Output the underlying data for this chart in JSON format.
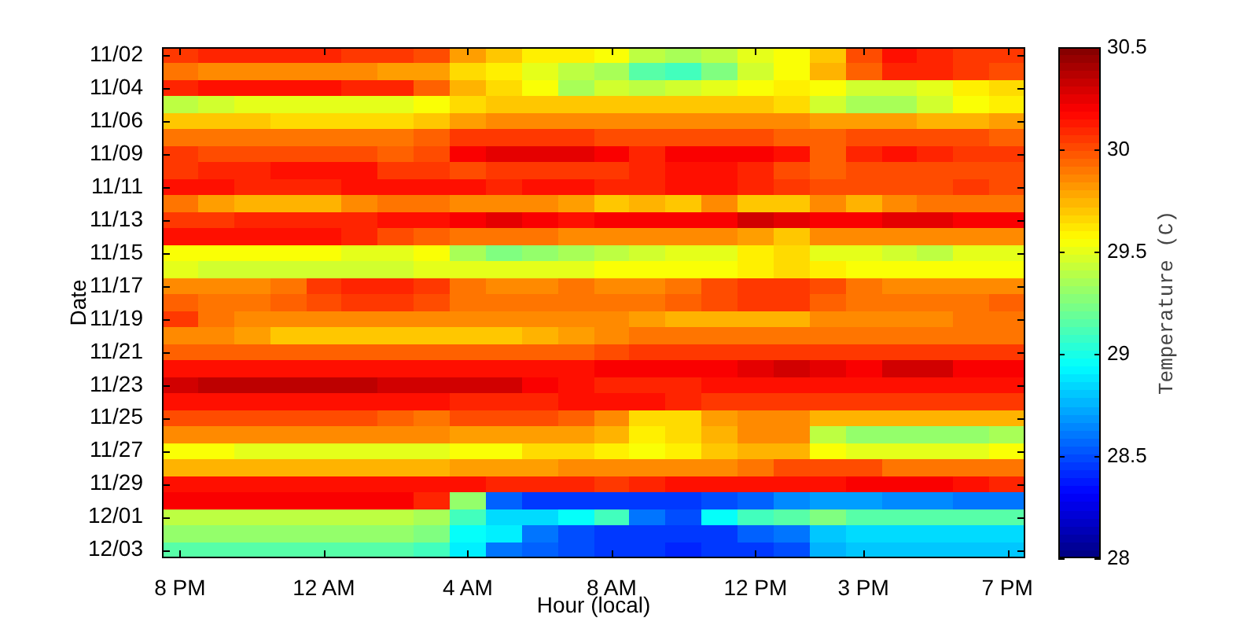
{
  "chart_data": {
    "type": "heatmap",
    "xlabel": "Hour (local)",
    "ylabel": "Date",
    "clabel": "Temperature (C)",
    "categories": [
      "8 PM",
      null,
      null,
      null,
      "12 AM",
      null,
      null,
      null,
      "4 AM",
      null,
      null,
      null,
      "8 AM",
      null,
      null,
      null,
      "12 PM",
      null,
      null,
      "3 PM",
      null,
      null,
      null,
      "7 PM"
    ],
    "y_categories": [
      "11/02",
      null,
      "11/04",
      null,
      "11/06",
      null,
      "11/09",
      null,
      "11/11",
      null,
      "11/13",
      null,
      "11/15",
      null,
      "11/17",
      null,
      "11/19",
      null,
      "11/21",
      null,
      "11/23",
      null,
      "11/25",
      null,
      "11/27",
      null,
      "11/29",
      null,
      "12/01",
      null,
      "12/03"
    ],
    "cells": [
      [
        30.05,
        30.1,
        30.1,
        30.1,
        30.1,
        30.05,
        30.05,
        30.0,
        29.8,
        29.7,
        29.6,
        29.6,
        29.55,
        29.4,
        29.35,
        29.4,
        29.5,
        29.55,
        29.7,
        30.0,
        30.15,
        30.1,
        30.05,
        30.05
      ],
      [
        29.9,
        29.85,
        29.85,
        29.85,
        29.85,
        29.85,
        29.8,
        29.8,
        29.65,
        29.6,
        29.5,
        29.4,
        29.35,
        29.15,
        29.1,
        29.25,
        29.45,
        29.55,
        29.75,
        29.95,
        30.1,
        30.1,
        30.05,
        30.0
      ],
      [
        30.1,
        30.15,
        30.15,
        30.15,
        30.15,
        30.1,
        30.1,
        29.95,
        29.75,
        29.65,
        29.55,
        29.35,
        29.45,
        29.4,
        29.45,
        29.5,
        29.55,
        29.6,
        29.55,
        29.45,
        29.45,
        29.5,
        29.6,
        29.65
      ],
      [
        29.4,
        29.45,
        29.5,
        29.5,
        29.5,
        29.5,
        29.5,
        29.55,
        29.65,
        29.7,
        29.7,
        29.7,
        29.7,
        29.7,
        29.7,
        29.7,
        29.7,
        29.65,
        29.45,
        29.35,
        29.35,
        29.45,
        29.55,
        29.6
      ],
      [
        29.7,
        29.7,
        29.7,
        29.65,
        29.65,
        29.65,
        29.65,
        29.7,
        29.8,
        29.85,
        29.85,
        29.85,
        29.85,
        29.85,
        29.85,
        29.85,
        29.85,
        29.85,
        29.8,
        29.8,
        29.8,
        29.75,
        29.75,
        29.8
      ],
      [
        29.9,
        29.9,
        29.9,
        29.9,
        29.9,
        29.9,
        29.9,
        29.95,
        30.05,
        30.05,
        30.05,
        30.05,
        30.0,
        30.0,
        30.0,
        30.0,
        30.0,
        29.95,
        29.95,
        30.0,
        30.0,
        30.0,
        30.0,
        29.95
      ],
      [
        30.05,
        30.0,
        30.0,
        30.0,
        30.0,
        30.0,
        29.95,
        30.0,
        30.2,
        30.25,
        30.25,
        30.25,
        30.2,
        30.1,
        30.2,
        30.2,
        30.2,
        30.15,
        29.95,
        30.1,
        30.15,
        30.1,
        30.05,
        30.05
      ],
      [
        30.05,
        30.1,
        30.1,
        30.15,
        30.15,
        30.15,
        30.05,
        30.05,
        30.0,
        30.05,
        30.05,
        30.05,
        30.05,
        30.1,
        30.15,
        30.15,
        30.1,
        30.0,
        29.95,
        30.0,
        30.0,
        30.0,
        30.0,
        30.0
      ],
      [
        30.15,
        30.15,
        30.1,
        30.1,
        30.1,
        30.15,
        30.15,
        30.15,
        30.15,
        30.1,
        30.15,
        30.15,
        30.1,
        30.1,
        30.15,
        30.15,
        30.1,
        30.05,
        30.0,
        30.0,
        30.0,
        30.0,
        30.05,
        30.0
      ],
      [
        29.9,
        29.8,
        29.75,
        29.75,
        29.75,
        29.85,
        29.9,
        29.9,
        29.85,
        29.85,
        29.85,
        29.8,
        29.7,
        29.75,
        29.7,
        29.85,
        29.7,
        29.7,
        29.85,
        29.75,
        29.85,
        29.9,
        29.9,
        29.9
      ],
      [
        30.05,
        30.05,
        30.1,
        30.1,
        30.1,
        30.1,
        30.15,
        30.15,
        30.2,
        30.25,
        30.2,
        30.15,
        30.2,
        30.2,
        30.2,
        30.2,
        30.3,
        30.25,
        30.2,
        30.2,
        30.25,
        30.25,
        30.2,
        30.2
      ],
      [
        30.15,
        30.15,
        30.15,
        30.15,
        30.15,
        30.1,
        30.0,
        29.95,
        29.9,
        29.9,
        29.9,
        29.85,
        29.85,
        29.85,
        29.85,
        29.85,
        29.8,
        29.7,
        29.85,
        29.85,
        29.85,
        29.85,
        29.85,
        29.85
      ],
      [
        29.55,
        29.55,
        29.55,
        29.55,
        29.55,
        29.5,
        29.5,
        29.55,
        29.35,
        29.25,
        29.3,
        29.35,
        29.4,
        29.45,
        29.5,
        29.5,
        29.6,
        29.65,
        29.5,
        29.5,
        29.45,
        29.4,
        29.5,
        29.5
      ],
      [
        29.5,
        29.45,
        29.45,
        29.45,
        29.45,
        29.45,
        29.45,
        29.5,
        29.5,
        29.5,
        29.5,
        29.5,
        29.55,
        29.55,
        29.55,
        29.55,
        29.6,
        29.65,
        29.6,
        29.55,
        29.55,
        29.55,
        29.55,
        29.55
      ],
      [
        29.85,
        29.85,
        29.85,
        29.9,
        30.05,
        30.1,
        30.1,
        30.05,
        29.9,
        29.85,
        29.85,
        29.9,
        29.85,
        29.85,
        29.9,
        30.0,
        30.05,
        30.05,
        30.0,
        29.9,
        29.85,
        29.85,
        29.85,
        29.85
      ],
      [
        29.95,
        29.9,
        29.9,
        29.95,
        30.0,
        30.05,
        30.05,
        30.0,
        29.9,
        29.9,
        29.9,
        29.9,
        29.9,
        29.9,
        29.95,
        30.0,
        30.05,
        30.05,
        29.95,
        29.9,
        29.9,
        29.9,
        29.9,
        29.95
      ],
      [
        30.05,
        29.9,
        29.85,
        29.85,
        29.85,
        29.85,
        29.85,
        29.85,
        29.85,
        29.85,
        29.85,
        29.85,
        29.85,
        29.8,
        29.75,
        29.75,
        29.75,
        29.75,
        29.85,
        29.85,
        29.85,
        29.85,
        29.9,
        29.9
      ],
      [
        29.85,
        29.85,
        29.8,
        29.7,
        29.7,
        29.7,
        29.7,
        29.7,
        29.7,
        29.7,
        29.75,
        29.8,
        29.85,
        29.9,
        29.9,
        29.9,
        29.9,
        29.9,
        29.9,
        29.9,
        29.9,
        29.9,
        29.9,
        29.9
      ],
      [
        29.95,
        29.95,
        29.95,
        29.95,
        29.95,
        29.95,
        29.95,
        29.95,
        29.95,
        29.95,
        29.95,
        29.95,
        30.0,
        30.05,
        30.05,
        30.05,
        30.05,
        30.05,
        30.05,
        30.05,
        30.05,
        30.05,
        30.05,
        30.05
      ],
      [
        30.15,
        30.15,
        30.15,
        30.15,
        30.15,
        30.15,
        30.15,
        30.15,
        30.15,
        30.15,
        30.15,
        30.15,
        30.2,
        30.2,
        30.2,
        30.2,
        30.25,
        30.3,
        30.25,
        30.2,
        30.3,
        30.3,
        30.2,
        30.2
      ],
      [
        30.3,
        30.35,
        30.35,
        30.35,
        30.35,
        30.35,
        30.3,
        30.3,
        30.3,
        30.3,
        30.2,
        30.15,
        30.1,
        30.1,
        30.1,
        30.15,
        30.15,
        30.15,
        30.15,
        30.15,
        30.15,
        30.15,
        30.15,
        30.15
      ],
      [
        30.15,
        30.15,
        30.15,
        30.15,
        30.15,
        30.15,
        30.15,
        30.15,
        30.1,
        30.1,
        30.1,
        30.15,
        30.15,
        30.15,
        30.1,
        30.05,
        30.05,
        30.05,
        30.05,
        30.05,
        30.05,
        30.05,
        30.05,
        30.05
      ],
      [
        30.0,
        30.0,
        30.0,
        30.0,
        30.0,
        30.0,
        29.95,
        29.9,
        30.0,
        30.0,
        30.0,
        29.95,
        29.85,
        29.65,
        29.65,
        29.8,
        29.85,
        29.85,
        29.75,
        29.75,
        29.75,
        29.75,
        29.75,
        29.75
      ],
      [
        29.85,
        29.85,
        29.85,
        29.85,
        29.85,
        29.85,
        29.85,
        29.85,
        29.8,
        29.8,
        29.8,
        29.8,
        29.75,
        29.6,
        29.65,
        29.75,
        29.85,
        29.85,
        29.4,
        29.3,
        29.3,
        29.3,
        29.3,
        29.35
      ],
      [
        29.55,
        29.55,
        29.5,
        29.5,
        29.5,
        29.5,
        29.5,
        29.5,
        29.55,
        29.55,
        29.65,
        29.65,
        29.6,
        29.55,
        29.6,
        29.7,
        29.75,
        29.75,
        29.55,
        29.5,
        29.5,
        29.5,
        29.5,
        29.55
      ],
      [
        29.75,
        29.75,
        29.75,
        29.75,
        29.75,
        29.75,
        29.75,
        29.75,
        29.8,
        29.8,
        29.8,
        29.85,
        29.85,
        29.85,
        29.85,
        29.85,
        29.9,
        30.0,
        30.0,
        30.0,
        29.9,
        29.9,
        29.9,
        29.9
      ],
      [
        30.15,
        30.15,
        30.15,
        30.15,
        30.15,
        30.15,
        30.15,
        30.15,
        30.15,
        30.1,
        30.1,
        30.1,
        30.05,
        30.1,
        30.15,
        30.15,
        30.15,
        30.15,
        30.15,
        30.2,
        30.2,
        30.2,
        30.15,
        30.1
      ],
      [
        30.2,
        30.2,
        30.2,
        30.2,
        30.2,
        30.2,
        30.2,
        30.1,
        29.3,
        28.55,
        28.45,
        28.45,
        28.45,
        28.45,
        28.45,
        28.5,
        28.55,
        28.65,
        28.7,
        28.7,
        28.65,
        28.65,
        28.6,
        28.6
      ],
      [
        29.4,
        29.4,
        29.4,
        29.4,
        29.4,
        29.4,
        29.4,
        29.35,
        29.1,
        28.85,
        28.85,
        28.95,
        29.1,
        28.6,
        28.5,
        28.95,
        29.1,
        29.15,
        29.25,
        29.15,
        29.15,
        29.15,
        29.15,
        29.15
      ],
      [
        29.3,
        29.3,
        29.3,
        29.3,
        29.3,
        29.3,
        29.3,
        29.25,
        28.95,
        28.9,
        28.6,
        28.5,
        28.45,
        28.45,
        28.45,
        28.45,
        28.55,
        28.6,
        28.8,
        28.85,
        28.85,
        28.85,
        28.85,
        28.85
      ],
      [
        29.15,
        29.15,
        29.15,
        29.15,
        29.15,
        29.15,
        29.15,
        29.1,
        28.9,
        28.6,
        28.55,
        28.5,
        28.45,
        28.45,
        28.4,
        28.45,
        28.45,
        28.5,
        28.75,
        28.8,
        28.8,
        28.8,
        28.8,
        28.8
      ]
    ],
    "clim": [
      28,
      30.5
    ],
    "cticks": [
      28,
      28.5,
      29,
      29.5,
      30,
      30.5
    ]
  }
}
